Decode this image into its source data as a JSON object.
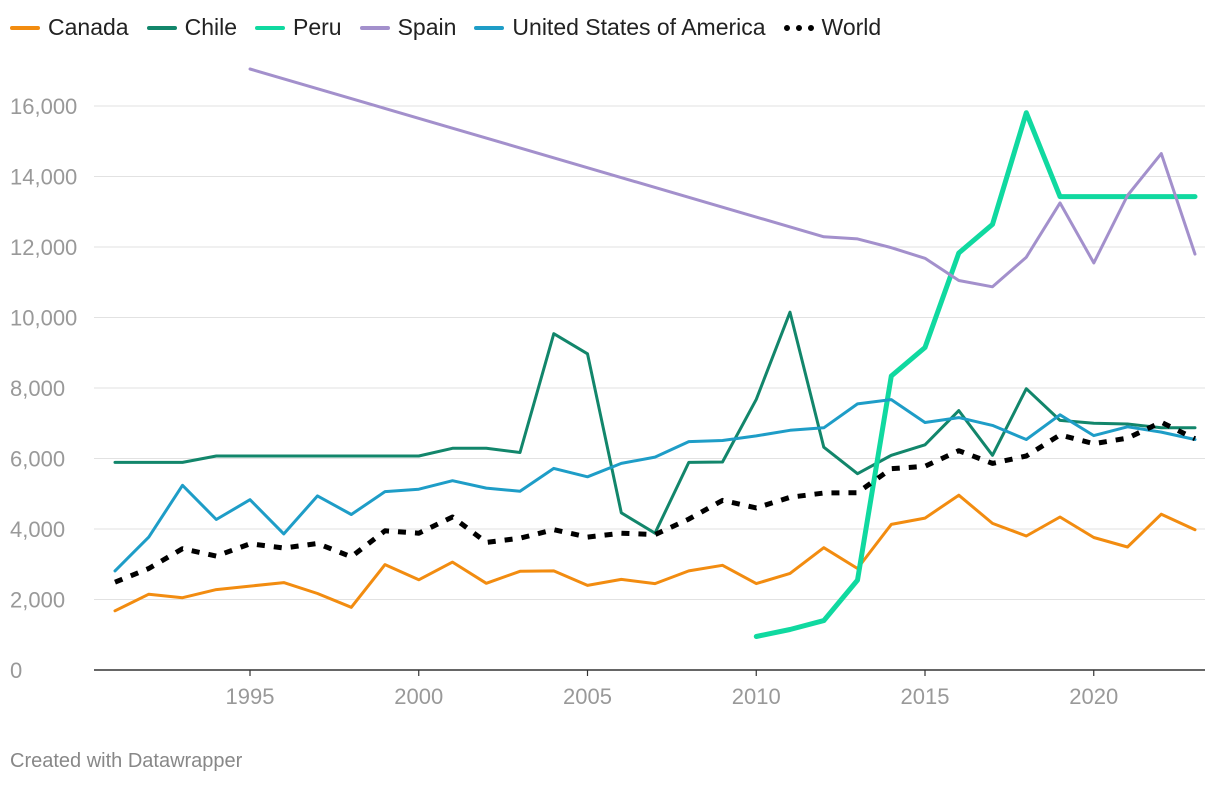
{
  "footer": "Created with Datawrapper",
  "chart_data": {
    "type": "line",
    "title": "",
    "xlabel": "",
    "ylabel": "",
    "xlim": [
      1991,
      2023
    ],
    "ylim": [
      0,
      16000
    ],
    "yticks": [
      0,
      2000,
      4000,
      6000,
      8000,
      10000,
      12000,
      14000,
      16000
    ],
    "ytick_labels": [
      "0",
      "2,000",
      "4,000",
      "6,000",
      "8,000",
      "10,000",
      "12,000",
      "14,000",
      "16,000"
    ],
    "xticks": [
      1995,
      2000,
      2005,
      2010,
      2015,
      2020
    ],
    "xtick_labels": [
      "1995",
      "2000",
      "2005",
      "2010",
      "2015",
      "2020"
    ],
    "grid": true,
    "legend_position": "top-left",
    "series": [
      {
        "name": "Canada",
        "color": "#f28c10",
        "style": "solid",
        "x": [
          1991,
          1992,
          1993,
          1994,
          1995,
          1996,
          1997,
          1998,
          1999,
          2000,
          2001,
          2002,
          2003,
          2004,
          2005,
          2006,
          2007,
          2008,
          2009,
          2010,
          2011,
          2012,
          2013,
          2014,
          2015,
          2016,
          2017,
          2018,
          2019,
          2020,
          2021,
          2022,
          2023
        ],
        "values": [
          1680,
          2150,
          2050,
          2280,
          2380,
          2480,
          2170,
          1780,
          2990,
          2560,
          3060,
          2460,
          2800,
          2810,
          2400,
          2570,
          2450,
          2810,
          2970,
          2450,
          2740,
          3470,
          2880,
          4130,
          4310,
          4960,
          4160,
          3800,
          4340,
          3760,
          3490,
          4420,
          3980
        ]
      },
      {
        "name": "Chile",
        "color": "#12866b",
        "style": "solid",
        "x": [
          1991,
          1992,
          1993,
          1994,
          1995,
          1996,
          1997,
          1998,
          1999,
          2000,
          2001,
          2002,
          2003,
          2004,
          2005,
          2006,
          2007,
          2008,
          2009,
          2010,
          2011,
          2012,
          2013,
          2014,
          2015,
          2016,
          2017,
          2018,
          2019,
          2020,
          2021,
          2022,
          2023
        ],
        "values": [
          5890,
          5890,
          5890,
          6070,
          6070,
          6070,
          6070,
          6070,
          6070,
          6070,
          6290,
          6290,
          6170,
          9540,
          8970,
          4460,
          3880,
          5890,
          5900,
          7680,
          10150,
          6320,
          5570,
          6090,
          6390,
          7360,
          6090,
          7980,
          7080,
          7000,
          6980,
          6870,
          6870
        ]
      },
      {
        "name": "Peru",
        "color": "#10d9a0",
        "style": "solid",
        "x": [
          2010,
          2011,
          2012,
          2013,
          2014,
          2015,
          2016,
          2017,
          2018,
          2019,
          2020,
          2021,
          2022,
          2023
        ],
        "values": [
          950,
          1150,
          1400,
          2550,
          8340,
          9150,
          11830,
          12640,
          15810,
          13430,
          13430,
          13430,
          13430,
          13430
        ]
      },
      {
        "name": "Spain",
        "color": "#a390cc",
        "style": "solid",
        "x": [
          1995,
          2012,
          2013,
          2014,
          2015,
          2016,
          2017,
          2018,
          2019,
          2020,
          2021,
          2022,
          2023
        ],
        "values": [
          17050,
          12290,
          12230,
          11980,
          11680,
          11050,
          10870,
          11710,
          13250,
          11550,
          13460,
          14650,
          11800
        ]
      },
      {
        "name": "United States of America",
        "color": "#1e9dc7",
        "style": "solid",
        "x": [
          1991,
          1992,
          1993,
          1994,
          1995,
          1996,
          1997,
          1998,
          1999,
          2000,
          2001,
          2002,
          2003,
          2004,
          2005,
          2006,
          2007,
          2008,
          2009,
          2010,
          2011,
          2012,
          2013,
          2014,
          2015,
          2016,
          2017,
          2018,
          2019,
          2020,
          2021,
          2022,
          2023
        ],
        "values": [
          2810,
          3770,
          5240,
          4270,
          4830,
          3860,
          4940,
          4410,
          5060,
          5130,
          5370,
          5160,
          5070,
          5720,
          5480,
          5860,
          6040,
          6480,
          6510,
          6640,
          6800,
          6870,
          7550,
          7670,
          7020,
          7160,
          6940,
          6540,
          7240,
          6650,
          6900,
          6750,
          6540
        ]
      },
      {
        "name": "World",
        "color": "#000000",
        "style": "dotted",
        "x": [
          1991,
          1992,
          1993,
          1994,
          1995,
          1996,
          1997,
          1998,
          1999,
          2000,
          2001,
          2002,
          2003,
          2004,
          2005,
          2006,
          2007,
          2008,
          2009,
          2010,
          2011,
          2012,
          2013,
          2014,
          2015,
          2016,
          2017,
          2018,
          2019,
          2020,
          2021,
          2022,
          2023
        ],
        "values": [
          2490,
          2880,
          3440,
          3230,
          3580,
          3460,
          3590,
          3210,
          3950,
          3880,
          4340,
          3620,
          3740,
          3980,
          3770,
          3880,
          3840,
          4280,
          4810,
          4600,
          4900,
          5020,
          5030,
          5710,
          5780,
          6220,
          5860,
          6070,
          6670,
          6420,
          6580,
          7030,
          6560
        ]
      }
    ]
  }
}
